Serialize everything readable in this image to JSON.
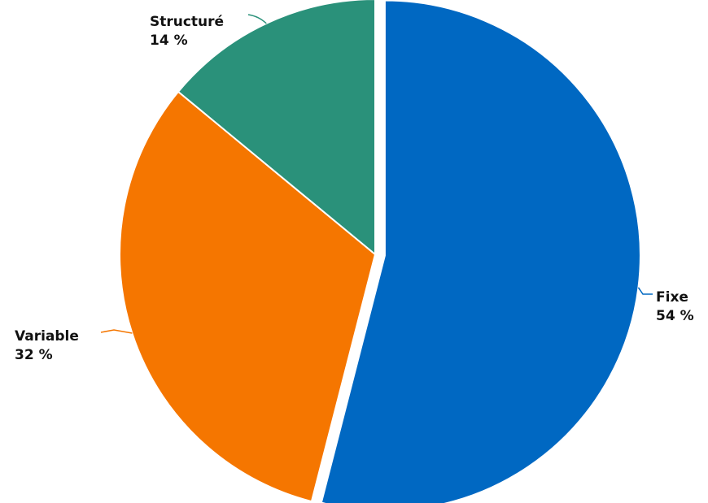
{
  "chart_data": {
    "type": "pie",
    "start_angle_deg": 0,
    "direction": "clockwise",
    "exploded": "Fixe",
    "slices": [
      {
        "name": "Fixe",
        "value": 54,
        "label": "54 %",
        "color": "#0068c2"
      },
      {
        "name": "Variable",
        "value": 32,
        "label": "32 %",
        "color": "#f57600"
      },
      {
        "name": "Structuré",
        "value": 14,
        "label": "14 %",
        "color": "#2a917a"
      }
    ]
  }
}
